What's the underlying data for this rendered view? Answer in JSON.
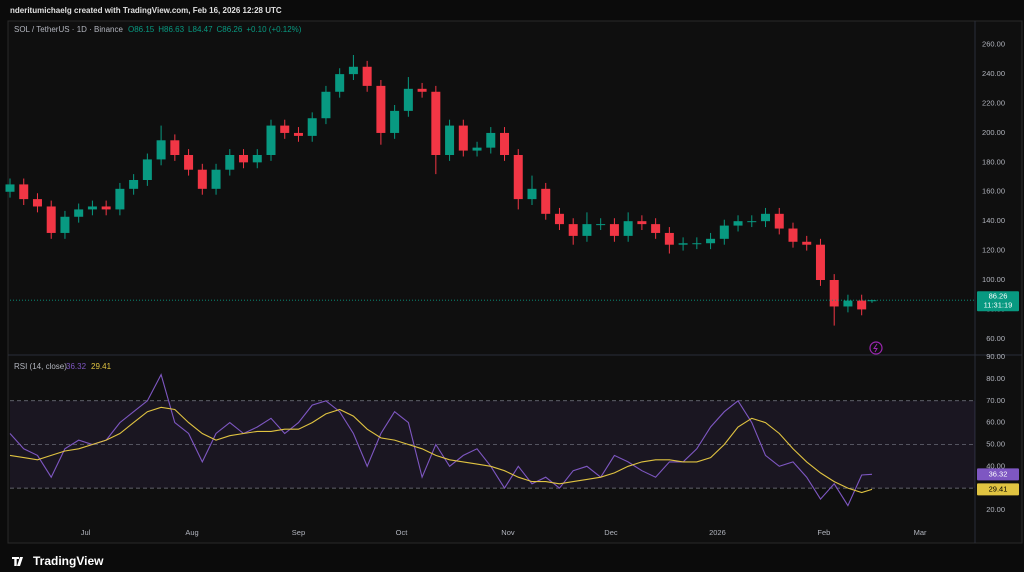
{
  "header": {
    "title": "nderitumichaelg created with TradingView.com, Feb 16, 2026 12:28 UTC",
    "brand": "TradingView"
  },
  "chart_data": [
    {
      "type": "candlestick",
      "title": "SOL / TetherUS · 1D · Binance",
      "ohlc_legend": [
        "O86.15",
        "H86.63",
        "L84.47",
        "C86.26",
        "+0.10 (+0.12%)"
      ],
      "x": [
        0,
        4,
        8,
        12,
        16,
        20,
        24,
        28,
        32,
        36,
        40,
        44,
        48,
        52,
        56,
        60,
        64,
        68,
        72,
        76,
        80,
        84,
        88,
        92,
        96,
        100,
        104,
        108,
        112,
        116,
        120,
        124,
        128,
        132,
        136,
        140,
        144,
        148,
        152,
        156,
        160,
        164,
        168,
        172,
        176,
        180,
        184,
        188,
        192,
        196,
        200,
        204,
        208,
        212,
        216,
        220,
        224,
        228,
        232,
        236,
        240,
        244,
        248,
        251
      ],
      "series": [
        {
          "up_color": "#089981",
          "down_color": "#f23645",
          "open": [
            160,
            165,
            155,
            150,
            132,
            143,
            148,
            150,
            148,
            162,
            168,
            182,
            195,
            185,
            175,
            162,
            175,
            185,
            180,
            185,
            205,
            200,
            198,
            210,
            228,
            240,
            245,
            232,
            200,
            215,
            230,
            228,
            185,
            205,
            188,
            190,
            200,
            185,
            155,
            162,
            145,
            138,
            130,
            138,
            138,
            130,
            140,
            138,
            132,
            124,
            125,
            125,
            128,
            137,
            140,
            140,
            145,
            135,
            126,
            124,
            100,
            82,
            86,
            86.15
          ],
          "high": [
            169,
            169,
            159,
            154,
            147,
            152,
            154,
            154,
            166,
            172,
            186,
            205,
            199,
            189,
            179,
            179,
            189,
            189,
            189,
            209,
            209,
            204,
            214,
            232,
            244,
            253,
            249,
            236,
            219,
            238,
            234,
            232,
            209,
            209,
            194,
            204,
            204,
            189,
            171,
            166,
            149,
            142,
            146,
            142,
            142,
            146,
            144,
            142,
            136,
            129,
            129,
            132,
            141,
            144,
            144,
            149,
            149,
            139,
            130,
            128,
            104,
            90,
            90,
            86.63
          ],
          "low": [
            156,
            151,
            146,
            128,
            128,
            139,
            144,
            144,
            144,
            158,
            164,
            178,
            181,
            171,
            158,
            158,
            171,
            176,
            176,
            181,
            196,
            194,
            194,
            206,
            224,
            236,
            228,
            192,
            196,
            211,
            224,
            172,
            181,
            184,
            184,
            186,
            181,
            148,
            151,
            141,
            134,
            124,
            126,
            134,
            126,
            126,
            134,
            128,
            118,
            120,
            121,
            121,
            124,
            133,
            136,
            136,
            131,
            122,
            120,
            96,
            69,
            78,
            76,
            84.47
          ],
          "close": [
            165,
            155,
            150,
            132,
            143,
            148,
            150,
            148,
            162,
            168,
            182,
            195,
            185,
            175,
            162,
            175,
            185,
            180,
            185,
            205,
            200,
            198,
            210,
            228,
            240,
            245,
            232,
            200,
            215,
            230,
            228,
            185,
            205,
            188,
            190,
            200,
            185,
            155,
            162,
            145,
            138,
            130,
            138,
            138,
            130,
            140,
            138,
            132,
            124,
            125,
            125,
            128,
            137,
            140,
            140,
            145,
            135,
            126,
            124,
            100,
            82,
            86,
            80,
            86.26
          ]
        }
      ],
      "countdown": "11:31:19",
      "xlim": [
        0,
        281
      ],
      "ylim": [
        49,
        270
      ],
      "yticks": [
        {
          "value": 60,
          "label": "60.00"
        },
        {
          "value": 80,
          "label": "80.00"
        },
        {
          "value": 100,
          "label": "100.00"
        },
        {
          "value": 120,
          "label": "120.00"
        },
        {
          "value": 140,
          "label": "140.00"
        },
        {
          "value": 160,
          "label": "160.00"
        },
        {
          "value": 180,
          "label": "180.00"
        },
        {
          "value": 200,
          "label": "200.00"
        },
        {
          "value": 220,
          "label": "220.00"
        },
        {
          "value": 240,
          "label": "240.00"
        },
        {
          "value": 260,
          "label": "260.00"
        }
      ]
    },
    {
      "type": "line",
      "title": "RSI (14, close)",
      "x": [
        0,
        4,
        8,
        12,
        16,
        20,
        24,
        28,
        32,
        36,
        40,
        44,
        48,
        52,
        56,
        60,
        64,
        68,
        72,
        76,
        80,
        84,
        88,
        92,
        96,
        100,
        104,
        108,
        112,
        116,
        120,
        124,
        128,
        132,
        136,
        140,
        144,
        148,
        152,
        156,
        160,
        164,
        168,
        172,
        176,
        180,
        184,
        188,
        192,
        196,
        200,
        204,
        208,
        212,
        216,
        220,
        224,
        228,
        232,
        236,
        240,
        244,
        248,
        251
      ],
      "series": [
        {
          "color": "#7e57c2",
          "values": [
            55,
            48,
            45,
            35,
            48,
            52,
            50,
            52,
            60,
            65,
            70,
            82,
            60,
            55,
            42,
            55,
            60,
            55,
            58,
            62,
            55,
            60,
            68,
            70,
            65,
            55,
            40,
            55,
            65,
            60,
            35,
            50,
            40,
            45,
            48,
            40,
            30,
            40,
            32,
            35,
            30,
            38,
            40,
            35,
            45,
            42,
            38,
            35,
            42,
            42,
            48,
            58,
            65,
            70,
            60,
            45,
            40,
            42,
            35,
            25,
            32,
            22,
            36,
            36.32
          ]
        },
        {
          "color": "#e0c341",
          "values": [
            45,
            44,
            43,
            45,
            47,
            48,
            50,
            52,
            55,
            60,
            65,
            67,
            66,
            60,
            55,
            52,
            54,
            55,
            56,
            56,
            57,
            57,
            60,
            64,
            66,
            63,
            57,
            53,
            52,
            50,
            48,
            45,
            43,
            42,
            41,
            40,
            38,
            35,
            33,
            33,
            32,
            33,
            34,
            35,
            37,
            40,
            42,
            43,
            43,
            42,
            42,
            44,
            50,
            58,
            62,
            60,
            55,
            48,
            42,
            37,
            33,
            30,
            28,
            29.41
          ]
        }
      ],
      "levels": [
        30,
        50,
        70
      ],
      "xlim": [
        0,
        281
      ],
      "ylim": [
        14.5,
        90.5
      ],
      "yticks": [
        {
          "value": 20,
          "label": "20.00"
        },
        {
          "value": 30,
          "label": "30.00"
        },
        {
          "value": 40,
          "label": "40.00"
        },
        {
          "value": 50,
          "label": "50.00"
        },
        {
          "value": 60,
          "label": "60.00"
        },
        {
          "value": 70,
          "label": "70.00"
        },
        {
          "value": 80,
          "label": "80.00"
        },
        {
          "value": 90,
          "label": "90.00"
        }
      ],
      "xticks": [
        {
          "value": 22,
          "label": "Jul"
        },
        {
          "value": 53,
          "label": "Aug"
        },
        {
          "value": 84,
          "label": "Sep"
        },
        {
          "value": 114,
          "label": "Oct"
        },
        {
          "value": 145,
          "label": "Nov"
        },
        {
          "value": 175,
          "label": "Dec"
        },
        {
          "value": 206,
          "label": "2026"
        },
        {
          "value": 237,
          "label": "Feb"
        },
        {
          "value": 265,
          "label": "Mar"
        }
      ]
    }
  ]
}
